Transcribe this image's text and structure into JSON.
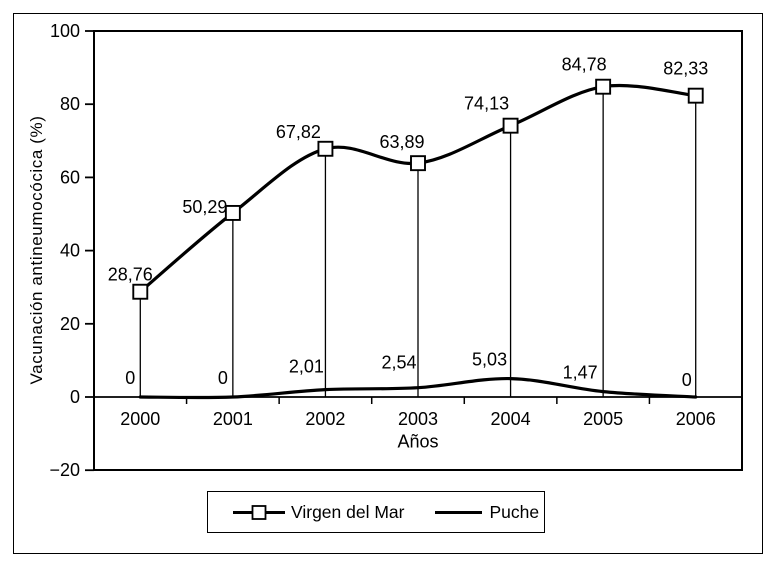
{
  "chart_data": {
    "type": "line",
    "title": "",
    "xlabel": "Años",
    "ylabel": "Vacunación antineumocócica (%)",
    "categories": [
      "2000",
      "2001",
      "2002",
      "2003",
      "2004",
      "2005",
      "2006"
    ],
    "ylim": [
      -20,
      100
    ],
    "y_ticks": [
      100,
      80,
      60,
      40,
      20,
      0,
      -20
    ],
    "y_tick_labels": [
      "100",
      "80",
      "60",
      "40",
      "20",
      "0",
      "−20"
    ],
    "grid": false,
    "legend_position": "bottom-center",
    "line_color": "#000000",
    "background_color": "#ffffff",
    "series": [
      {
        "name": "Virgen del Mar",
        "marker": "open-square",
        "smooth": true,
        "drop_lines": true,
        "values": [
          28.76,
          50.29,
          67.82,
          63.89,
          74.13,
          84.78,
          82.33
        ],
        "labels": [
          "28,76",
          "50,29",
          "67,82",
          "63,89",
          "74,13",
          "84,78",
          "82,33"
        ],
        "label_offsets": [
          [
            -10,
            -17
          ],
          [
            -28,
            -6
          ],
          [
            -27,
            -17
          ],
          [
            -16,
            -21
          ],
          [
            -24,
            -22
          ],
          [
            -19,
            -22
          ],
          [
            -10,
            -27
          ]
        ]
      },
      {
        "name": "Puche",
        "marker": "none",
        "smooth": true,
        "drop_lines": false,
        "values": [
          0,
          0,
          2.01,
          2.54,
          5.03,
          1.47,
          0
        ],
        "labels": [
          "0",
          "0",
          "2,01",
          "2,54",
          "5,03",
          "1,47",
          "0"
        ],
        "label_offsets": [
          [
            -10,
            -19
          ],
          [
            -10,
            -19
          ],
          [
            -19,
            -23
          ],
          [
            -19,
            -25
          ],
          [
            -21,
            -19
          ],
          [
            -23,
            -19
          ],
          [
            -9,
            -17
          ]
        ]
      }
    ]
  }
}
